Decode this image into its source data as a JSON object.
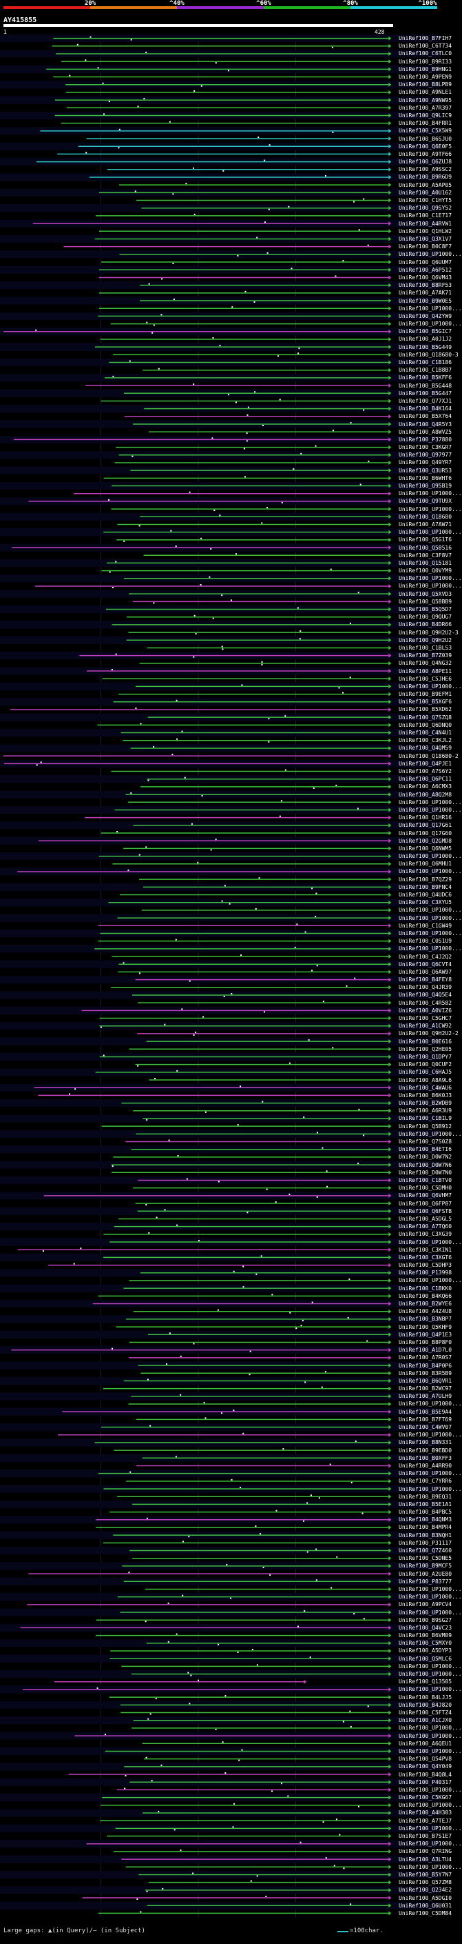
{
  "header": {
    "scale_labels": [
      "20%",
      "^40%",
      "^60%",
      "^80%",
      "^100%"
    ],
    "scale_colors": [
      "#e01c1c",
      "#e07a10",
      "#9a2ad0",
      "#1fb31f",
      "#1ec8d8"
    ],
    "query_name": "AY415855",
    "query_start": "1",
    "query_end": "428"
  },
  "colors": {
    "high": "#2ec4c4",
    "mid": "#3fbf3f",
    "low": "#c040c0",
    "dot": "#ffffff"
  },
  "labels": [
    "UniRef100_B7FIH7",
    "UniRef100_C6T734",
    "UniRef100_C6TLC0",
    "UniRef100_B9RI33",
    "UniRef100_B9HNG1",
    "UniRef100_A9PEN9",
    "UniRef100_B8LPB9",
    "UniRef100_A9NLE1",
    "UniRef100_A9NW95",
    "UniRef100_A7R397",
    "UniRef100_Q9LIC9",
    "UniRef100_B4FRR1",
    "UniRef100_C5X5W9",
    "UniRef100_B6SJU0",
    "UniRef100_Q6E0F5",
    "UniRef100_A9TF66",
    "UniRef100_Q6ZUJ8",
    "UniRef100_A9SSC2",
    "UniRef100_B9R6D9",
    "UniRef100_A5AP05",
    "UniRef100_A0U162",
    "UniRef100_C1HYT5",
    "UniRef100_Q9SY52",
    "UniRef100_C1E717",
    "UniRef100_A4RVW1",
    "UniRef100_Q1HLW2",
    "UniRef100_Q3X1V7",
    "UniRef100_B0C8F7",
    "UniRef100_UP1000...",
    "UniRef100_Q6UUM7",
    "UniRef100_A6P512",
    "UniRef100_Q6VM43",
    "UniRef100_B8RF53",
    "UniRef100_A7AK71",
    "UniRef100_B9W0E5",
    "UniRef100_UP1000...",
    "UniRef100_Q4ZYW9",
    "UniRef100_UP1000...",
    "UniRef100_B5GIC7",
    "UniRef100_A0J1J2",
    "UniRef100_B5G449",
    "UniRef100_Q18680-3",
    "UniRef100_C1B186",
    "UniRef100_C1B8B7",
    "UniRef100_B5KFF6",
    "UniRef100_B5G448",
    "UniRef100_B5G447",
    "UniRef100_Q77XJ1",
    "UniRef100_B4K164",
    "UniRef100_B5X764",
    "UniRef100_Q4R5Y3",
    "UniRef100_A8WVZ5",
    "UniRef100_P37880",
    "UniRef100_C3KGR7",
    "UniRef100_Q97977",
    "UniRef100_Q49YR7",
    "UniRef100_Q3UR53",
    "UniRef100_B6WHT6",
    "UniRef100_Q95B19",
    "UniRef100_UP1000...",
    "UniRef100_Q9TU9X",
    "UniRef100_UP1000...",
    "UniRef100_Q18680",
    "UniRef100_A7AW71",
    "UniRef100_UP1000...",
    "UniRef100_Q5G1T6",
    "UniRef100_Q58516",
    "UniRef100_C3F8V7",
    "UniRef100_Q15181",
    "UniRef100_Q0VYM9",
    "UniRef100_UP1000...",
    "UniRef100_UP1000...",
    "UniRef100_Q5XVD3",
    "UniRef100_Q58BB9",
    "UniRef100_B5Q5D7",
    "UniRef100_Q9QUG7",
    "UniRef100_B4DR66",
    "UniRef100_Q9H2U2-3",
    "UniRef100_Q9H2U2",
    "UniRef100_C1BLS3",
    "UniRef100_B7Z039",
    "UniRef100_Q4NG32",
    "UniRef100_A8PE11",
    "UniRef100_C5JHE6",
    "UniRef100_UP1000...",
    "UniRef100_B9EFM1",
    "UniRef100_B5XGF6",
    "UniRef100_B5XD62",
    "UniRef100_Q7SZQ8",
    "UniRef100_Q6DNQ0",
    "UniRef100_C4N4U1",
    "UniRef100_C3KJL2",
    "UniRef100_Q4QM59",
    "UniRef100_Q18680-2",
    "UniRef100_Q4PJE1",
    "UniRef100_A7S6Y2",
    "UniRef100_Q6PC11",
    "UniRef100_A6CMX3",
    "UniRef100_A8Q2M8",
    "UniRef100_UP1000...",
    "UniRef100_UP1000...",
    "UniRef100_Q1HR16",
    "UniRef100_Q17G61",
    "UniRef100_Q17G60",
    "UniRef100_Q2GMD8",
    "UniRef100_Q6NWM5",
    "UniRef100_UP1000...",
    "UniRef100_Q6MHU1",
    "UniRef100_UP1000...",
    "UniRef100_B7QZ29",
    "UniRef100_B9FNC4",
    "UniRef100_Q4UDC6",
    "UniRef100_C3XYU5",
    "UniRef100_UP1000...",
    "UniRef100_UP1000...",
    "UniRef100_C1GW49",
    "UniRef100_UP1000...",
    "UniRef100_C0S1U9",
    "UniRef100_UP1000...",
    "UniRef100_C4J2Q2",
    "UniRef100_Q6CVT4",
    "UniRef100_Q6AW97",
    "UniRef100_B4FEY8",
    "UniRef100_Q4JR39",
    "UniRef100_Q4Q5E4",
    "UniRef100_C4R582",
    "UniRef100_A0VIZ6",
    "UniRef100_C5GHC7",
    "UniRef100_A1CW92",
    "UniRef100_Q9H2U2-2",
    "UniRef100_B0E616",
    "UniRef100_Q2HE05",
    "UniRef100_Q1DPY7",
    "UniRef100_Q0CUF2",
    "UniRef100_C6HAJ5",
    "UniRef100_A8A9L6",
    "UniRef100_C4WAU6",
    "UniRef100_B6K0J3",
    "UniRef100_B2WDB9",
    "UniRef100_A6R3U9",
    "UniRef100_C1BIL9",
    "UniRef100_Q5B912",
    "UniRef100_UP1000...",
    "UniRef100_Q7S0Z8",
    "UniRef100_B4ETI6",
    "UniRef100_D0W7N2",
    "UniRef100_D0W7N6",
    "UniRef100_D0W7N0",
    "UniRef100_C1BTV0",
    "UniRef100_C5DMH0",
    "UniRef100_Q6VHM7",
    "UniRef100_Q6FP87",
    "UniRef100_Q6FSTB",
    "UniRef100_A5DGL5",
    "UniRef100_A7TQ60",
    "UniRef100_C3XG39",
    "UniRef100_UP1000...",
    "UniRef100_C3KIN1",
    "UniRef100_C3XGT6",
    "UniRef100_C5DHP3",
    "UniRef100_P13998",
    "UniRef100_UP1000...",
    "UniRef100_C1BKK0",
    "UniRef100_B4KQ66",
    "UniRef100_B2WYE6",
    "UniRef100_A4Z4U8",
    "UniRef100_B3NBP7",
    "UniRef100_Q5KHF9",
    "UniRef100_Q4P1E3",
    "UniRef100_B8P8F0",
    "UniRef100_A1D7L0",
    "UniRef100_A7R0S7",
    "UniRef100_B4P0P6",
    "UniRef100_B3R5B9",
    "UniRef100_B6QVR1",
    "UniRef100_B2WC97",
    "UniRef100_A7ULH9",
    "UniRef100_UP1000...",
    "UniRef100_B5E9A4",
    "UniRef100_B7FT69",
    "UniRef100_C4WV07",
    "UniRef100_UP1000...",
    "UniRef100_B8N331",
    "UniRef100_B9EBD0",
    "UniRef100_B0XFF3",
    "UniRef100_A4RR90",
    "UniRef100_UP1000...",
    "UniRef100_C7YRR6",
    "UniRef100_UP1000...",
    "UniRef100_B9EQ31",
    "UniRef100_B5E1A1",
    "UniRef100_B4PBC5",
    "UniRef100_B4QNM3",
    "UniRef100_B4MPR4",
    "UniRef100_B3NQH1",
    "UniRef100_P31117",
    "UniRef100_Q7Z460",
    "UniRef100_C5DNE5",
    "UniRef100_B9MCF5",
    "UniRef100_A2UE80",
    "UniRef100_P83777",
    "UniRef100_UP1000...",
    "UniRef100_UP1000...",
    "UniRef100_A9PCV4",
    "UniRef100_UP1000...",
    "UniRef100_B9SG27",
    "UniRef100_Q4VC23",
    "UniRef100_B6VM09",
    "UniRef100_C5MXY0",
    "UniRef100_A5DYP3",
    "UniRef100_Q5MLC6",
    "UniRef100_UP1000...",
    "UniRef100_UP1000...",
    "UniRef100_Q13505",
    "UniRef100_UP1000...",
    "UniRef100_B4LJJ5",
    "UniRef100_B4J820",
    "UniRef100_C5FTZ4",
    "UniRef100_A1CJX0",
    "UniRef100_UP1000...",
    "UniRef100_UP1000...",
    "UniRef100_A6QEU1",
    "UniRef100_UP1000...",
    "UniRef100_Q54PV8",
    "UniRef100_Q4Y049",
    "UniRef100_B4Q8L4",
    "UniRef100_P40317",
    "UniRef100_UP1000...",
    "UniRef100_C5KG67",
    "UniRef100_UP1000...",
    "UniRef100_A4H303",
    "UniRef100_A7TEJ7",
    "UniRef100_UP1000...",
    "UniRef100_B7S1E7",
    "UniRef100_UP1000...",
    "UniRef100_Q7RING",
    "UniRef100_A3LTU4",
    "UniRef100_UP1000...",
    "UniRef100_B5Y7N7",
    "UniRef100_Q57ZM8",
    "UniRef100_Q234E2",
    "UniRef100_A5DGI0",
    "UniRef100_Q6U031",
    "UniRef100_C5DM84"
  ]
}
